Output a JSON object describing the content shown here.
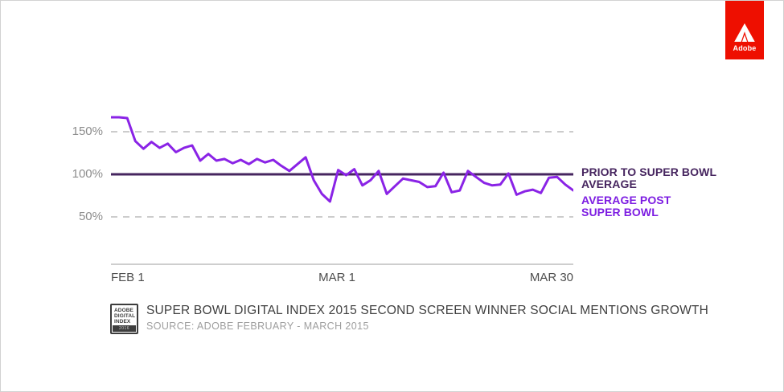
{
  "brand": {
    "adobe_label": "Adobe",
    "adobe_red": "#ee0f00"
  },
  "chart_data": {
    "type": "line",
    "title": "SUPER BOWL DIGITAL INDEX 2015 SECOND SCREEN WINNER SOCIAL MENTIONS GROWTH",
    "x_axis": {
      "tick_labels": [
        "FEB 1",
        "MAR 1",
        "MAR 30"
      ],
      "tick_day_index": [
        0,
        28,
        57
      ],
      "range_days": [
        0,
        57
      ]
    },
    "y_axis": {
      "tick_labels": [
        "150%",
        "100%",
        "50%"
      ],
      "tick_values": [
        150,
        100,
        50
      ],
      "gridline_values": [
        150,
        50
      ],
      "unit": "%",
      "ylim": [
        40,
        175
      ]
    },
    "reference_line": {
      "label": "PRIOR TO SUPER BOWL AVERAGE",
      "value": 100,
      "color": "#46255f"
    },
    "series": [
      {
        "name": "AVERAGE POST SUPER BOWL",
        "color": "#8a23e6",
        "values": [
          167,
          167,
          166,
          139,
          130,
          138,
          131,
          136,
          126,
          131,
          134,
          116,
          124,
          116,
          118,
          113,
          117,
          112,
          118,
          114,
          117,
          110,
          104,
          112,
          120,
          93,
          77,
          68,
          105,
          99,
          106,
          87,
          93,
          104,
          77,
          86,
          95,
          93,
          91,
          85,
          86,
          102,
          79,
          81,
          104,
          97,
          90,
          87,
          88,
          101,
          76,
          80,
          82,
          78,
          96,
          97,
          88,
          81
        ]
      }
    ],
    "style": {
      "grid_color": "#cccccc",
      "axis_color": "#bdbdbd",
      "legend_position": "right"
    }
  },
  "annotations": {
    "prior_line1": "PRIOR TO SUPER BOWL",
    "prior_line2": "AVERAGE",
    "post_line1": "AVERAGE POST",
    "post_line2": "SUPER BOWL"
  },
  "footer": {
    "logo": {
      "line1": "ADOBE",
      "line2": "DIGITAL",
      "line3": "INDEX",
      "band": "2016"
    },
    "title": "SUPER BOWL DIGITAL INDEX 2015 SECOND SCREEN WINNER SOCIAL MENTIONS GROWTH",
    "source": "SOURCE: ADOBE FEBRUARY - MARCH 2015"
  }
}
